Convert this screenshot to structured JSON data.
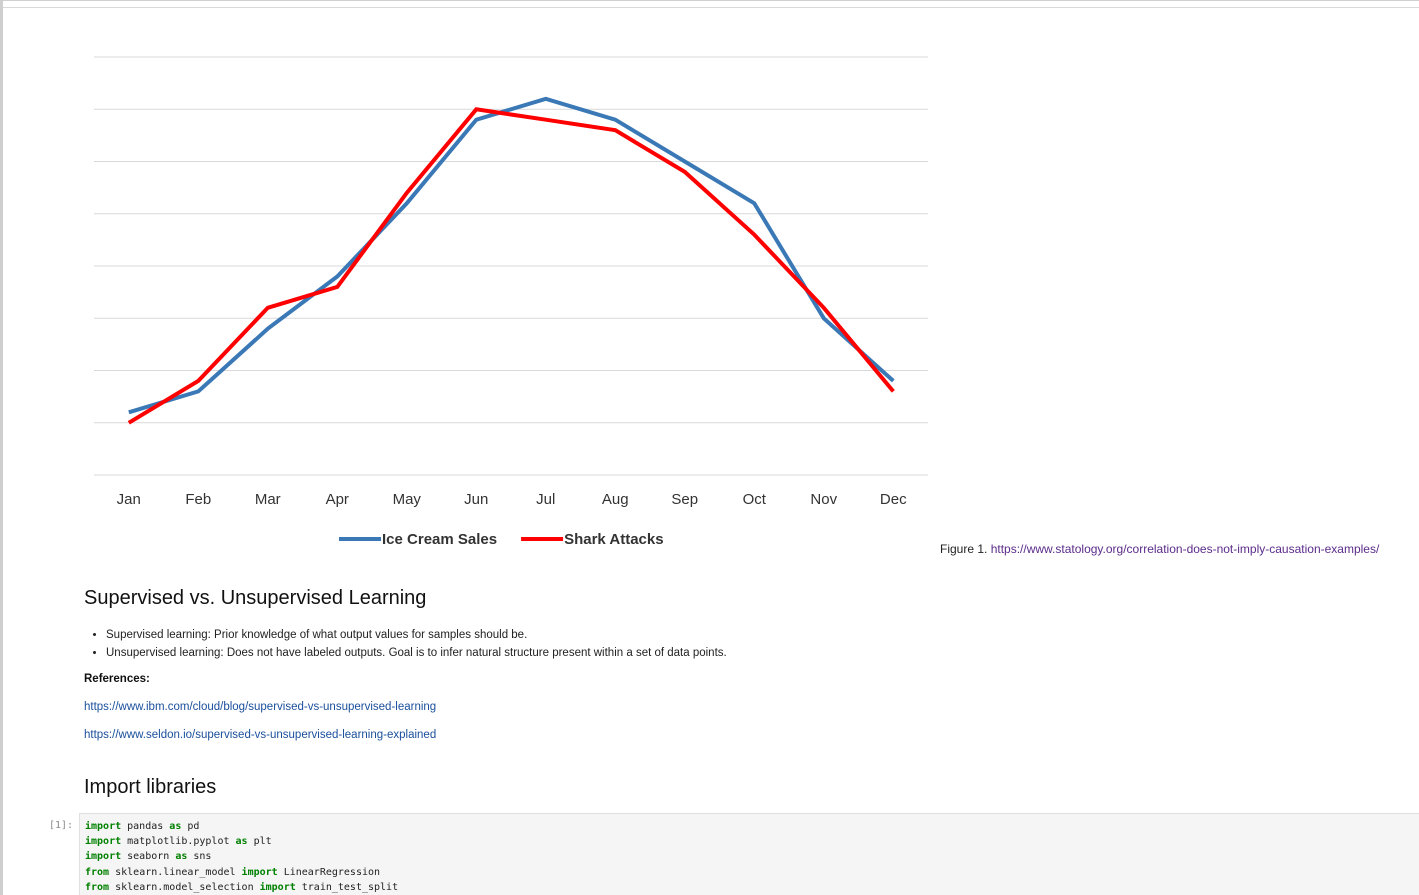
{
  "chart_data": {
    "type": "line",
    "categories": [
      "Jan",
      "Feb",
      "Mar",
      "Apr",
      "May",
      "Jun",
      "Jul",
      "Aug",
      "Sep",
      "Oct",
      "Nov",
      "Dec"
    ],
    "series": [
      {
        "name": "Ice Cream Sales",
        "color": "#3a78b6",
        "values": [
          6,
          8,
          14,
          19,
          26,
          34,
          36,
          34,
          30,
          26,
          15,
          9
        ]
      },
      {
        "name": "Shark Attacks",
        "color": "#ff0000",
        "values": [
          5,
          9,
          16,
          18,
          27,
          35,
          34,
          33,
          29,
          23,
          16,
          8
        ]
      }
    ],
    "ylim": [
      0,
      40
    ],
    "grid": true,
    "legend": "bottom",
    "title": "",
    "xlabel": "",
    "ylabel": ""
  },
  "figure_caption": {
    "prefix": "Figure 1. ",
    "link": "https://www.statology.org/correlation-does-not-imply-causation-examples/"
  },
  "section1": {
    "heading": "Supervised vs. Unsupervised Learning",
    "bullets": [
      "Supervised learning: Prior knowledge of what output values for samples should be.",
      "Unsupervised learning: Does not have labeled outputs. Goal is to infer natural structure present within a set of data points."
    ],
    "references_label": "References:",
    "references": [
      "https://www.ibm.com/cloud/blog/supervised-vs-unsupervised-learning",
      "https://www.seldon.io/supervised-vs-unsupervised-learning-explained"
    ]
  },
  "section2": {
    "heading": "Import libraries"
  },
  "code_cell": {
    "prompt": "[1]:",
    "lines": [
      [
        {
          "kw": "import"
        },
        {
          "t": " pandas "
        },
        {
          "kw": "as"
        },
        {
          "t": " pd"
        }
      ],
      [
        {
          "kw": "import"
        },
        {
          "t": " matplotlib.pyplot "
        },
        {
          "kw": "as"
        },
        {
          "t": " plt"
        }
      ],
      [
        {
          "kw": "import"
        },
        {
          "t": " seaborn "
        },
        {
          "kw": "as"
        },
        {
          "t": " sns"
        }
      ],
      [
        {
          "kw": "from"
        },
        {
          "t": " sklearn.linear_model "
        },
        {
          "kw": "import"
        },
        {
          "t": " LinearRegression"
        }
      ],
      [
        {
          "kw": "from"
        },
        {
          "t": " sklearn.model_selection "
        },
        {
          "kw": "import"
        },
        {
          "t": " train_test_split"
        }
      ]
    ]
  }
}
